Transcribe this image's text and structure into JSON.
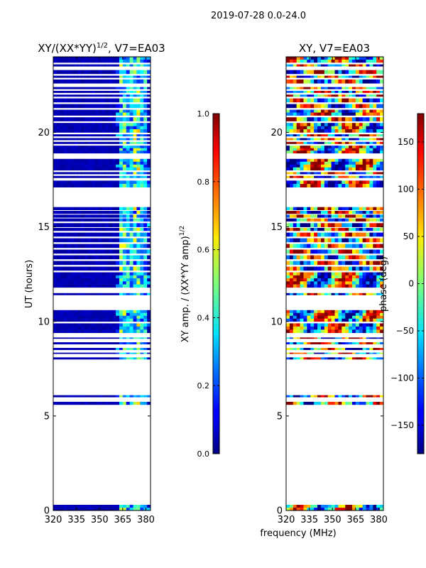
{
  "figure": {
    "suptitle": "2019-07-28 0.0-24.0",
    "shared_xlabel": "frequency (MHz)"
  },
  "colors": {
    "no_data": "#ffffff",
    "frame": "#000000",
    "jet_low": "#00007f",
    "jet_high": "#7f0000"
  },
  "chart_data": [
    {
      "type": "heatmap",
      "title": "XY/(XX*YY)",
      "title_superscript": "1/2",
      "title_suffix": ", V7=EA03",
      "ylabel": "UT (hours)",
      "xlabel": "",
      "x_ticks": [
        320,
        335,
        350,
        365,
        380
      ],
      "y_ticks": [
        0,
        5,
        10,
        15,
        20
      ],
      "xlim": [
        320,
        383
      ],
      "ylim": [
        0,
        24
      ],
      "colorbar": {
        "label": "XY amp. / (XX*YY amp)",
        "label_superscript": "1/2",
        "range": [
          0.0,
          1.0
        ],
        "ticks": [
          "0.0",
          "0.2",
          "0.4",
          "0.6",
          "0.8",
          "1.0"
        ],
        "colormap": "jet"
      }
    },
    {
      "type": "heatmap",
      "title": "XY, V7=EA03",
      "ylabel": "",
      "xlabel": "frequency (MHz)",
      "x_ticks": [
        320,
        335,
        350,
        365,
        380
      ],
      "y_ticks": [
        0,
        5,
        10,
        15,
        20
      ],
      "xlim": [
        320,
        383
      ],
      "ylim": [
        0,
        24
      ],
      "colorbar": {
        "label": "phase (deg)",
        "range": [
          -180,
          180
        ],
        "ticks": [
          "−150",
          "−100",
          "−50",
          "0",
          "50",
          "100",
          "150"
        ],
        "colormap": "jet"
      }
    }
  ],
  "data_coverage_hours": [
    [
      0.0,
      0.3
    ],
    [
      5.6,
      5.75
    ],
    [
      6.0,
      6.1
    ],
    [
      8.0,
      8.1
    ],
    [
      8.3,
      8.35
    ],
    [
      8.5,
      8.6
    ],
    [
      8.8,
      8.9
    ],
    [
      9.1,
      9.15
    ],
    [
      9.4,
      9.9
    ],
    [
      10.0,
      10.6
    ],
    [
      11.4,
      11.5
    ],
    [
      11.8,
      12.6
    ],
    [
      12.7,
      12.9
    ],
    [
      13.0,
      13.2
    ],
    [
      13.3,
      13.5
    ],
    [
      13.6,
      13.8
    ],
    [
      13.9,
      14.1
    ],
    [
      14.2,
      14.4
    ],
    [
      14.5,
      14.7
    ],
    [
      14.8,
      14.95
    ],
    [
      15.0,
      15.2
    ],
    [
      15.3,
      15.45
    ],
    [
      15.5,
      15.65
    ],
    [
      15.7,
      15.85
    ],
    [
      15.9,
      16.05
    ],
    [
      17.1,
      17.45
    ],
    [
      17.6,
      17.7
    ],
    [
      17.8,
      17.9
    ],
    [
      18.0,
      18.6
    ],
    [
      18.9,
      19.3
    ],
    [
      19.4,
      19.5
    ],
    [
      19.6,
      19.7
    ],
    [
      19.8,
      19.9
    ],
    [
      20.0,
      20.5
    ],
    [
      20.6,
      20.8
    ],
    [
      20.9,
      21.2
    ],
    [
      21.3,
      21.5
    ],
    [
      21.6,
      21.8
    ],
    [
      21.9,
      22.0
    ],
    [
      22.1,
      22.2
    ],
    [
      22.3,
      22.4
    ],
    [
      22.6,
      22.8
    ],
    [
      22.9,
      23.0
    ],
    [
      23.1,
      23.3
    ],
    [
      23.5,
      23.6
    ],
    [
      23.7,
      24.0
    ]
  ],
  "amplitude_hot_bands_mhz": [
    [
      363,
      367,
      0.45
    ],
    [
      368,
      371,
      0.35
    ],
    [
      372,
      376,
      0.5
    ],
    [
      377,
      380,
      0.35
    ]
  ]
}
